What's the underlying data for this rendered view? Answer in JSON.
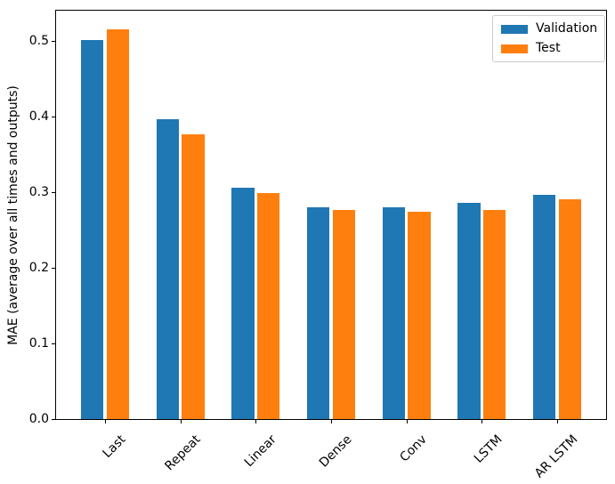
{
  "chart_data": {
    "type": "bar",
    "title": "",
    "xlabel": "",
    "ylabel": "MAE (average over all times and outputs)",
    "categories": [
      "Last",
      "Repeat",
      "Linear",
      "Dense",
      "Conv",
      "LSTM",
      "AR LSTM"
    ],
    "series": [
      {
        "name": "Validation",
        "color": "#1f77b4",
        "values": [
          0.501,
          0.396,
          0.306,
          0.28,
          0.28,
          0.286,
          0.297
        ]
      },
      {
        "name": "Test",
        "color": "#ff7f0e",
        "values": [
          0.515,
          0.377,
          0.299,
          0.276,
          0.274,
          0.276,
          0.291
        ]
      }
    ],
    "ylim": [
      0,
      0.54
    ],
    "xlim": [
      -0.65,
      6.65
    ],
    "yticks": [
      0.0,
      0.1,
      0.2,
      0.3,
      0.4,
      0.5
    ],
    "ytick_labels": [
      "0.0",
      "0.1",
      "0.2",
      "0.3",
      "0.4",
      "0.5"
    ],
    "bar_width_units": 0.3,
    "bar_offset_units": 0.17,
    "xtick_rotation_deg": 45,
    "legend_position": "upper right",
    "grid": false,
    "background_color": "#ffffff",
    "spine_color": "#000000"
  }
}
